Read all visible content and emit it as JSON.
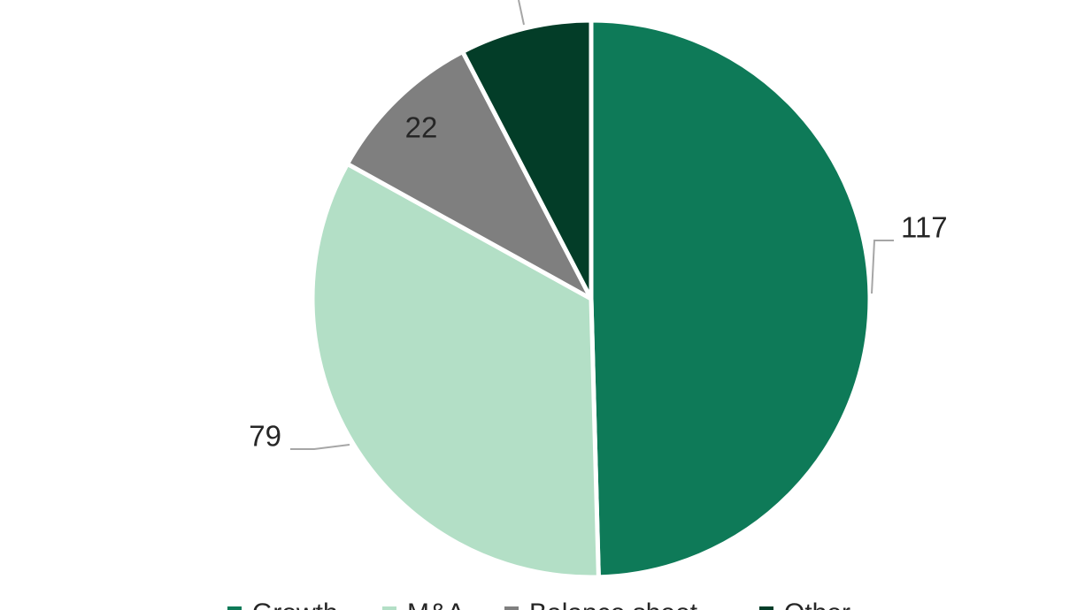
{
  "chart_data": {
    "type": "pie",
    "categories": [
      "Growth",
      "M&A",
      "Balance sheet",
      "Other"
    ],
    "values": [
      117,
      79,
      22,
      18
    ],
    "colors": [
      "#0e7a58",
      "#b3dfc6",
      "#7f7f7f",
      "#033d28"
    ],
    "legend": "bottom"
  }
}
